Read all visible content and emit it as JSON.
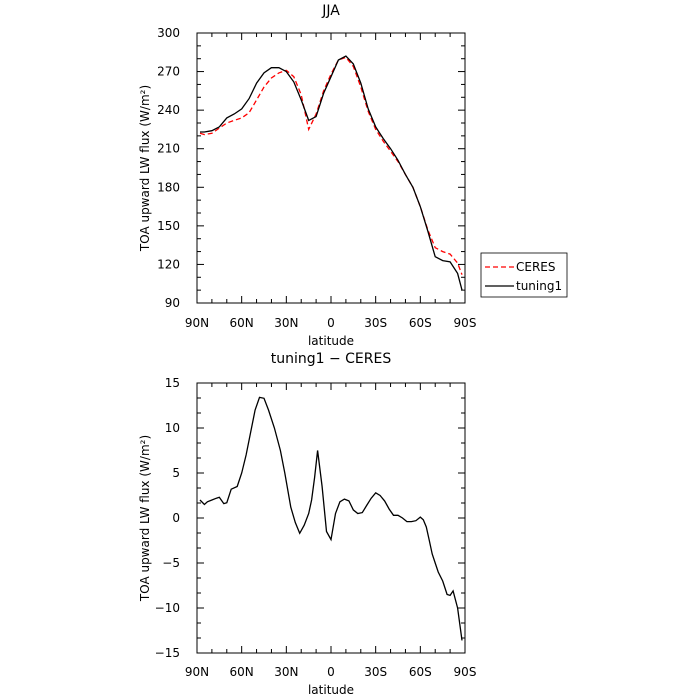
{
  "chart_data": [
    {
      "type": "line",
      "title": "JJA",
      "xlabel": "latitude",
      "ylabel": "TOA upward LW flux (W/m²)",
      "xlim": [
        90,
        -90
      ],
      "ylim": [
        90,
        300
      ],
      "x_ticks": [
        90,
        60,
        30,
        0,
        -30,
        -60,
        -90
      ],
      "x_tick_labels": [
        "90N",
        "60N",
        "30N",
        "0",
        "30S",
        "60S",
        "90S"
      ],
      "y_ticks": [
        90,
        120,
        150,
        180,
        210,
        240,
        270,
        300
      ],
      "y_tick_labels": [
        "90",
        "120",
        "150",
        "180",
        "210",
        "240",
        "270",
        "300"
      ],
      "legend": {
        "placement": "outside-right",
        "entries": [
          "CERES",
          "tuning1"
        ]
      },
      "series": [
        {
          "name": "CERES",
          "color": "#ff0000",
          "dash": "dashed",
          "x": [
            88,
            85,
            80,
            75,
            70,
            65,
            60,
            55,
            50,
            45,
            40,
            35,
            30,
            25,
            20,
            15,
            10,
            5,
            0,
            -5,
            -10,
            -15,
            -20,
            -25,
            -30,
            -35,
            -40,
            -45,
            -50,
            -55,
            -60,
            -65,
            -70,
            -75,
            -80,
            -85,
            -88
          ],
          "y": [
            222,
            221,
            222,
            226,
            230,
            232,
            234,
            238,
            248,
            258,
            265,
            269,
            271,
            266,
            252,
            225,
            237,
            255,
            268,
            279,
            281,
            274,
            258,
            239,
            225,
            216,
            208,
            200,
            190,
            180,
            165,
            147,
            133,
            130,
            128,
            121,
            112
          ]
        },
        {
          "name": "tuning1",
          "color": "#000000",
          "dash": "solid",
          "x": [
            88,
            85,
            80,
            75,
            70,
            65,
            60,
            55,
            50,
            45,
            40,
            35,
            30,
            25,
            20,
            15,
            10,
            5,
            0,
            -5,
            -10,
            -15,
            -20,
            -25,
            -30,
            -35,
            -40,
            -45,
            -50,
            -55,
            -60,
            -65,
            -70,
            -75,
            -80,
            -85,
            -88
          ],
          "y": [
            223,
            223,
            224,
            227,
            234,
            237,
            241,
            249,
            261,
            269,
            273,
            273,
            270,
            262,
            248,
            232,
            235,
            253,
            266,
            279,
            282,
            276,
            261,
            241,
            227,
            218,
            210,
            201,
            190,
            180,
            165,
            146,
            126,
            123,
            122,
            113,
            100
          ]
        }
      ]
    },
    {
      "type": "line",
      "title": "tuning1 − CERES",
      "xlabel": "latitude",
      "ylabel": "TOA upward LW flux (W/m²)",
      "xlim": [
        90,
        -90
      ],
      "ylim": [
        -15,
        15
      ],
      "x_ticks": [
        90,
        60,
        30,
        0,
        -30,
        -60,
        -90
      ],
      "x_tick_labels": [
        "90N",
        "60N",
        "30N",
        "0",
        "30S",
        "60S",
        "90S"
      ],
      "y_ticks": [
        -15,
        -10,
        -5,
        0,
        5,
        10,
        15
      ],
      "y_tick_labels": [
        "−15",
        "−10",
        "−5",
        "0",
        "5",
        "10",
        "15"
      ],
      "series": [
        {
          "color": "#000000",
          "dash": "solid",
          "x": [
            88,
            85,
            83,
            80,
            77,
            75,
            72,
            70,
            67,
            63,
            60,
            57,
            54,
            51,
            48,
            45,
            42,
            38,
            34,
            31,
            27,
            24,
            21,
            18,
            15,
            13,
            11,
            9,
            6,
            3,
            0,
            -3,
            -6,
            -9,
            -12,
            -15,
            -18,
            -21,
            -24,
            -27,
            -30,
            -33,
            -36,
            -39,
            -42,
            -45,
            -48,
            -51,
            -54,
            -57,
            -60,
            -62,
            -64,
            -66,
            -68,
            -70,
            -72,
            -75,
            -78,
            -80,
            -82,
            -85,
            -88
          ],
          "y": [
            2.0,
            1.5,
            1.8,
            2.0,
            2.2,
            2.3,
            1.6,
            1.7,
            3.2,
            3.5,
            5.0,
            7.0,
            9.5,
            12.0,
            13.4,
            13.3,
            12.0,
            10.0,
            7.5,
            5.0,
            1.2,
            -0.5,
            -1.7,
            -0.8,
            0.5,
            2.0,
            4.5,
            7.5,
            3.5,
            -1.5,
            -2.4,
            0.5,
            1.8,
            2.1,
            1.9,
            0.9,
            0.5,
            0.6,
            1.4,
            2.2,
            2.8,
            2.5,
            1.9,
            1.0,
            0.3,
            0.3,
            0.0,
            -0.4,
            -0.4,
            -0.3,
            0.1,
            -0.2,
            -1.0,
            -2.5,
            -4.0,
            -5.0,
            -6.0,
            -7.0,
            -8.5,
            -8.6,
            -8.1,
            -10.0,
            -13.6
          ]
        }
      ]
    }
  ]
}
